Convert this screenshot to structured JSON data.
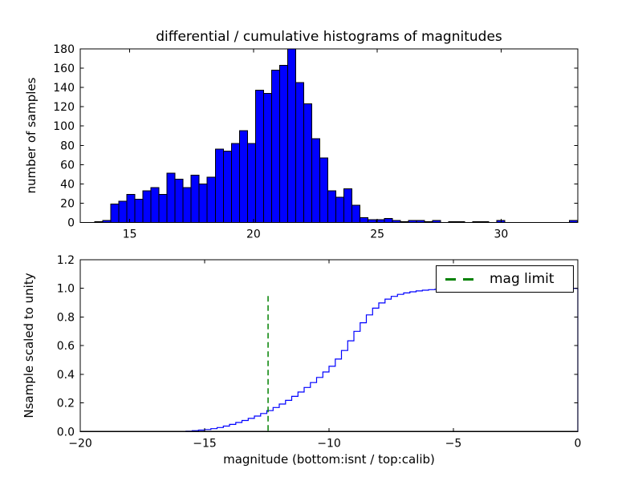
{
  "figure": {
    "background": "#ffffff",
    "frame_color": "#000000",
    "text_color": "#000000"
  },
  "chart_data": [
    {
      "id": "top-differential-histogram",
      "type": "bar",
      "title": "differential / cumulative histograms of magnitudes",
      "xlabel": "",
      "ylabel": "number of samples",
      "xlim": [
        13.0,
        33.1
      ],
      "ylim": [
        0,
        180
      ],
      "xticks": [
        15,
        20,
        25,
        30
      ],
      "yticks": [
        0,
        20,
        40,
        60,
        80,
        100,
        120,
        140,
        160,
        180
      ],
      "grid": false,
      "bar_color": "#0000ff",
      "bar_edge_color": "#000000",
      "bin_start": 13.58,
      "bin_width": 0.325,
      "counts": [
        1,
        2,
        19,
        22,
        29,
        24,
        33,
        36,
        29,
        51,
        45,
        36,
        49,
        40,
        47,
        76,
        74,
        82,
        95,
        82,
        137,
        134,
        158,
        163,
        180,
        145,
        123,
        87,
        67,
        33,
        26,
        35,
        18,
        5,
        3,
        3,
        4,
        2,
        1,
        2,
        2,
        1,
        2,
        0,
        1,
        1,
        0,
        1,
        1,
        0,
        2,
        0,
        0,
        0,
        0,
        0,
        0,
        0,
        0,
        2
      ]
    },
    {
      "id": "bottom-cumulative-histogram",
      "type": "line",
      "title": "",
      "xlabel": "magnitude (bottom:isnt / top:calib)",
      "ylabel": "Nsample scaled to unity",
      "xlim": [
        -20,
        0
      ],
      "ylim": [
        0,
        1.2
      ],
      "xticks": [
        -20,
        -15,
        -10,
        -5,
        0
      ],
      "yticks": [
        0.0,
        0.2,
        0.4,
        0.6,
        0.8,
        1.0,
        1.2
      ],
      "grid": false,
      "line_color": "#0000ff",
      "step_start_x": -20,
      "step_end_x": 0,
      "step_edges": [
        -15.75,
        -15.5,
        -15.25,
        -15.0,
        -14.75,
        -14.5,
        -14.25,
        -14.0,
        -13.75,
        -13.5,
        -13.25,
        -13.0,
        -12.75,
        -12.5,
        -12.25,
        -12.0,
        -11.75,
        -11.5,
        -11.25,
        -11.0,
        -10.75,
        -10.5,
        -10.25,
        -10.0,
        -9.75,
        -9.5,
        -9.25,
        -9.0,
        -8.75,
        -8.5,
        -8.25,
        -8.0,
        -7.75,
        -7.5,
        -7.25,
        -7.0,
        -6.75,
        -6.5,
        -6.25,
        -6.0,
        -5.75,
        -5.5,
        -5.25,
        -5.0,
        -4.75
      ],
      "step_values": [
        0.003,
        0.006,
        0.01,
        0.014,
        0.02,
        0.028,
        0.038,
        0.05,
        0.063,
        0.077,
        0.092,
        0.108,
        0.126,
        0.146,
        0.168,
        0.192,
        0.218,
        0.246,
        0.276,
        0.308,
        0.342,
        0.378,
        0.416,
        0.456,
        0.506,
        0.566,
        0.634,
        0.7,
        0.76,
        0.815,
        0.862,
        0.898,
        0.925,
        0.944,
        0.958,
        0.968,
        0.976,
        0.982,
        0.987,
        0.991,
        0.994,
        0.996,
        0.998,
        0.999,
        1.0
      ],
      "vline": {
        "x": -12.45,
        "y_bottom": 0.0,
        "y_top": 0.96,
        "color": "#008000",
        "style": "dashed"
      },
      "legend": {
        "label": "mag limit",
        "position": "upper right",
        "line_color": "#008000"
      }
    }
  ]
}
